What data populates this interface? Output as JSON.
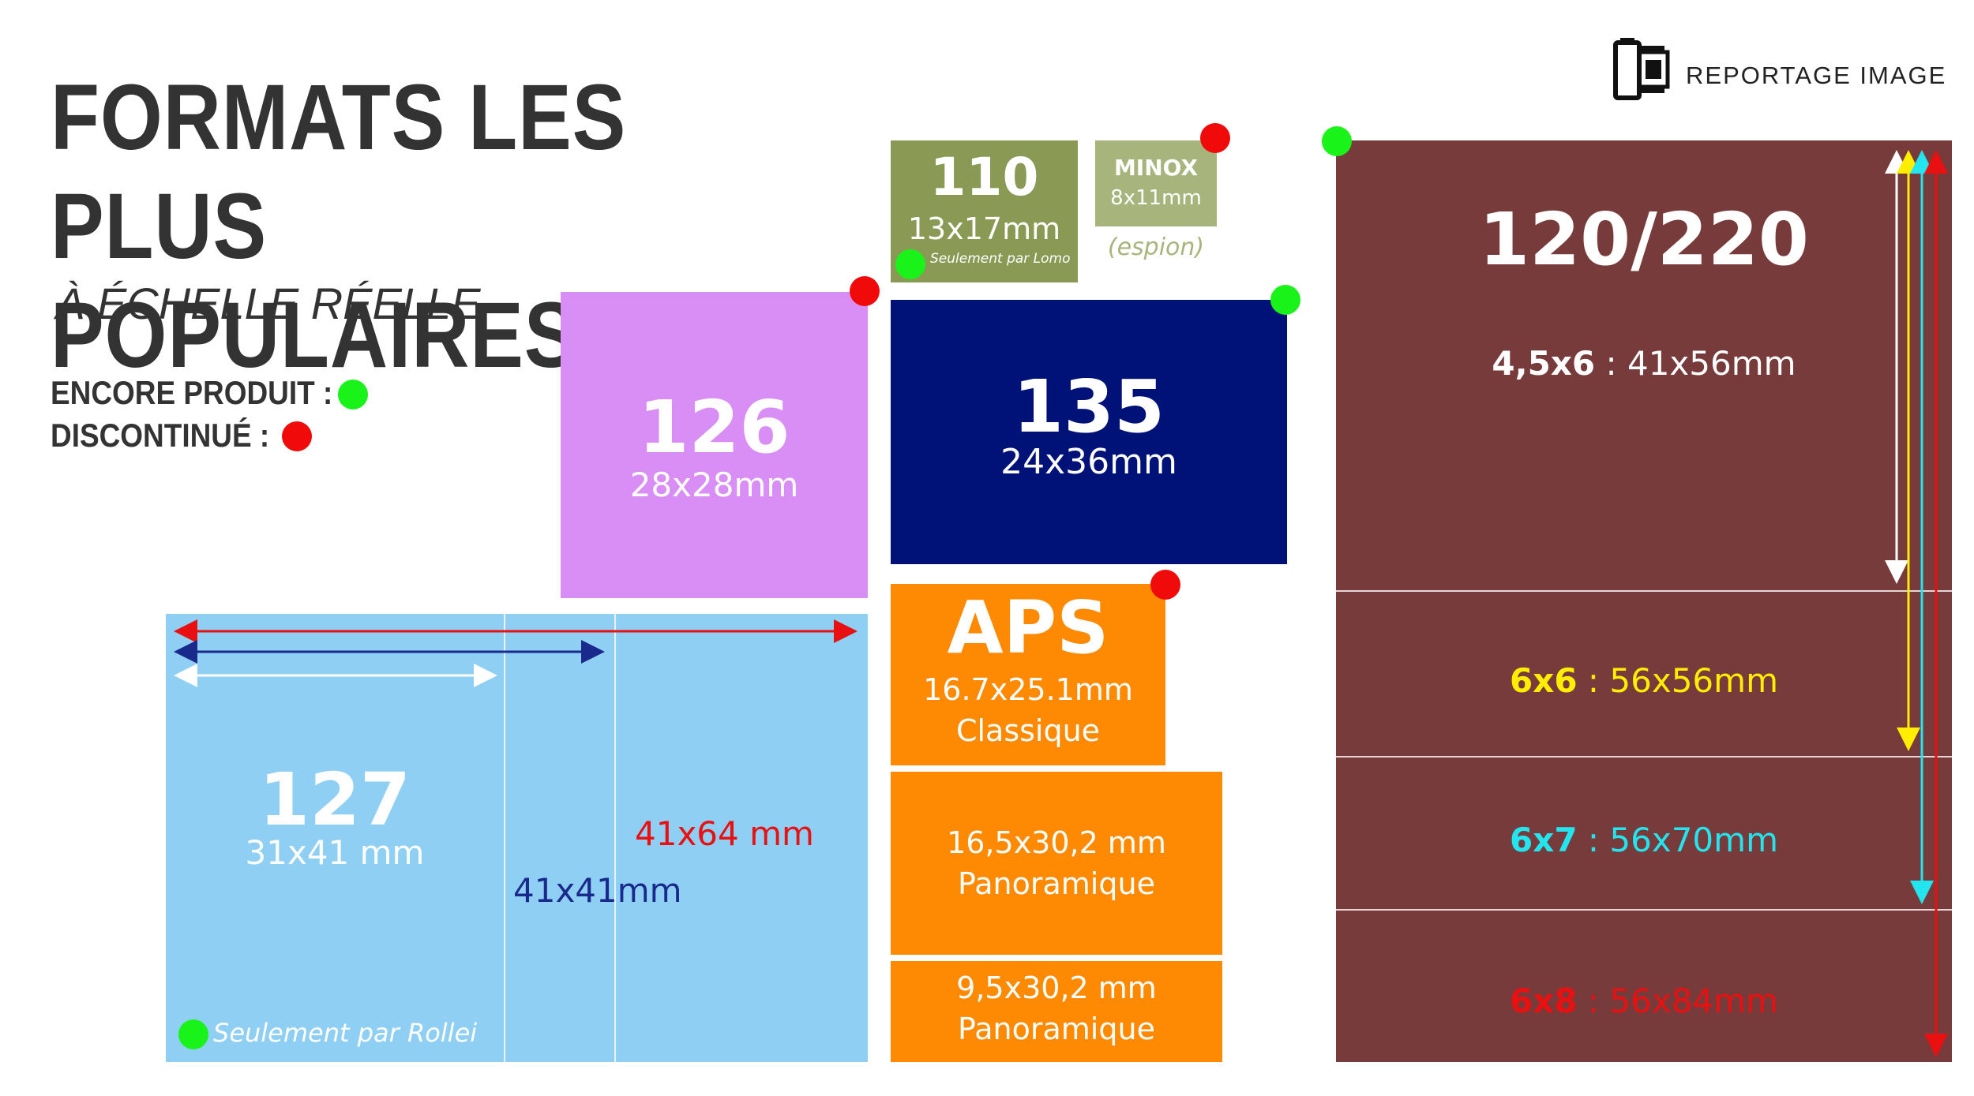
{
  "header": {
    "title_line1": "FORMATS LES PLUS",
    "title_line2": "POPULAIRES",
    "subtitle": "À ÉCHELLE RÉELLE"
  },
  "logo": {
    "text": "REPORTAGE IMAGE",
    "icon": "film-canister-icon"
  },
  "legend": {
    "produced_label": "ENCORE PRODUIT :",
    "discontinued_label": "DISCONTINUÉ :",
    "produced_color": "#19f319",
    "discontinued_color": "#f00a0a"
  },
  "formats": {
    "f110": {
      "name": "110",
      "size": "13x17mm",
      "note": "Seulement par Lomo",
      "color": "#8a9a55"
    },
    "minox": {
      "name": "MINOX",
      "size": "8x11mm",
      "note": "(espion)",
      "color": "#a7b57c"
    },
    "f126": {
      "name": "126",
      "size": "28x28mm",
      "color": "#d98ef5"
    },
    "f135": {
      "name": "135",
      "size": "24x36mm",
      "color": "#001177"
    },
    "aps": {
      "name": "APS",
      "classic_size": "16.7x25.1mm",
      "classic_label": "Classique",
      "pano1_size": "16,5x30,2 mm",
      "pano1_label": "Panoramique",
      "pano2_size": "9,5x30,2 mm",
      "pano2_label": "Panoramique",
      "color": "#fe8a04"
    },
    "f127": {
      "name": "127",
      "size": "31x41 mm",
      "size_square": "41x41mm",
      "size_wide": "41x64 mm",
      "note": "Seulement par Rollei",
      "color": "#8ecff3",
      "square_color": "#1a2a8c",
      "wide_color": "#e81010"
    },
    "f120": {
      "name": "120/220",
      "sizes": [
        {
          "name": "4,5x6",
          "dims": " : 41x56mm",
          "color": "#ffffff"
        },
        {
          "name": "6x6",
          "dims": " : 56x56mm",
          "color": "#ffee00"
        },
        {
          "name": "6x7",
          "dims": " : 56x70mm",
          "color": "#22e5f0"
        },
        {
          "name": "6x8",
          "dims": " : 56x84mm",
          "color": "#e81010"
        }
      ],
      "color": "#773b3b"
    }
  }
}
